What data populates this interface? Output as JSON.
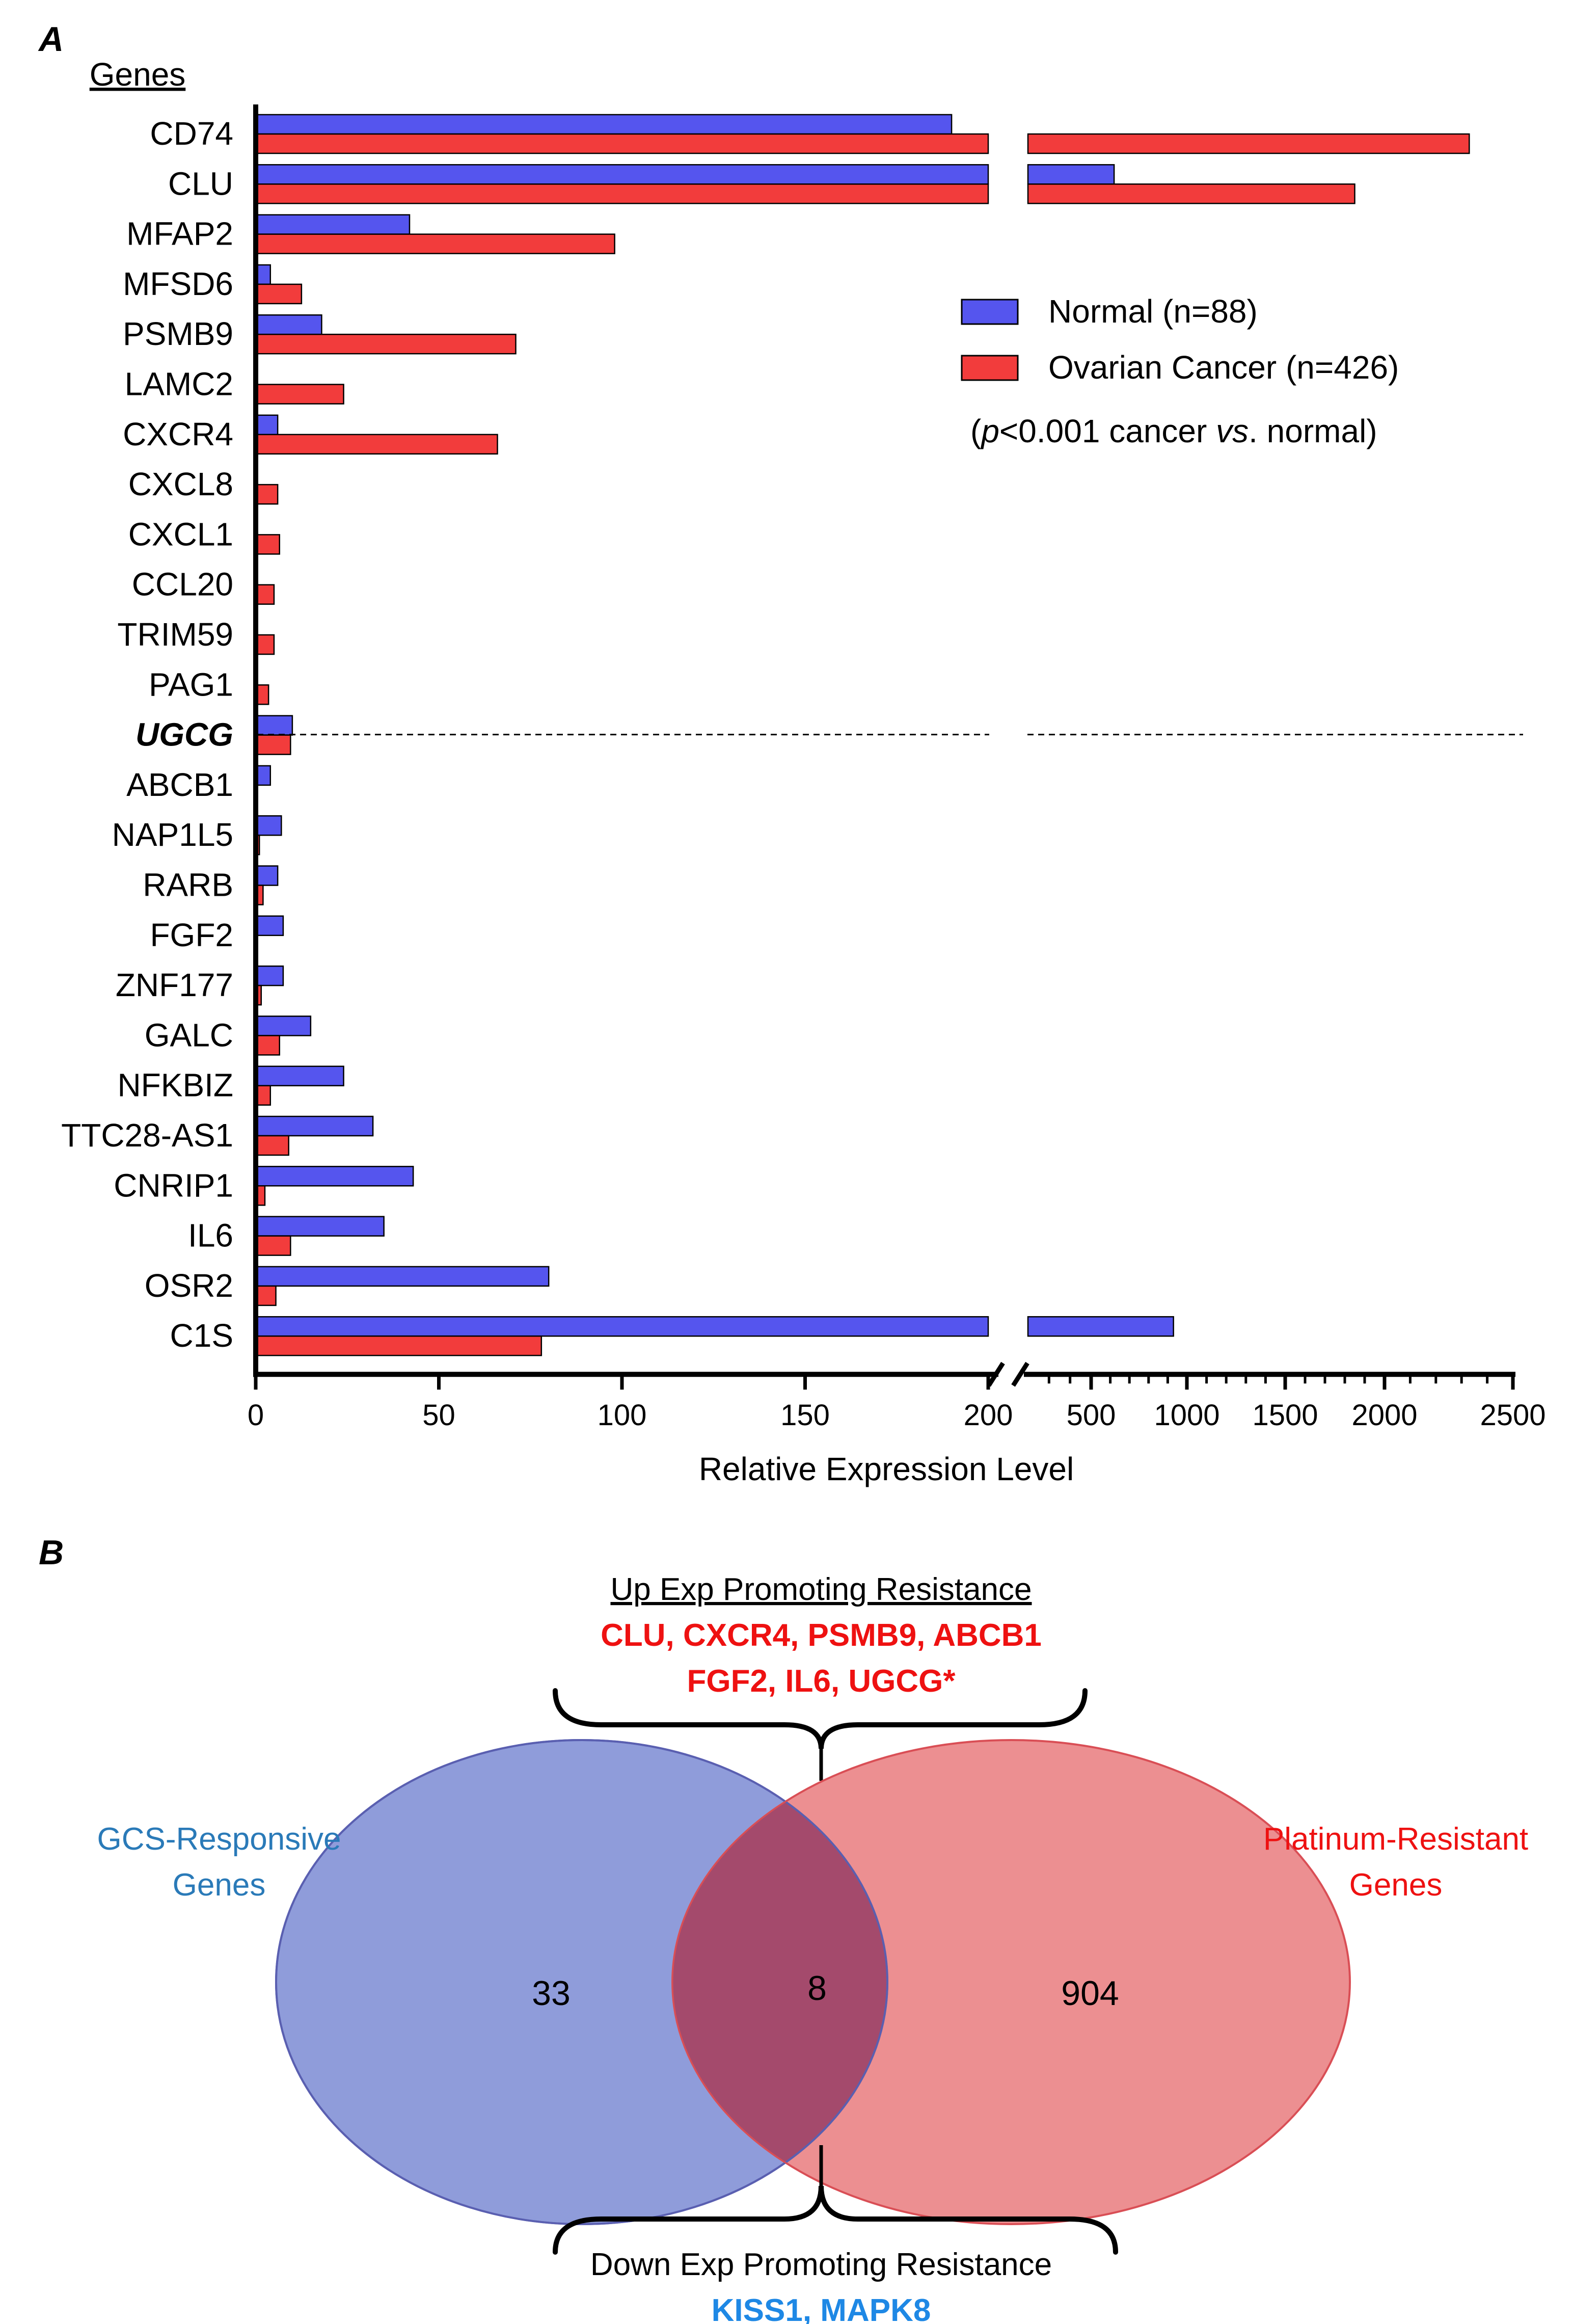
{
  "panel_a": {
    "letter": "A",
    "genes_header": "Genes",
    "highlight_gene": "UGCG",
    "legend": {
      "normal": "Normal (n=88)",
      "cancer": "Ovarian Cancer (n=426)",
      "pvalue_p": "p",
      "pvalue_mid": "<0.001 cancer ",
      "pvalue_vs": "vs",
      "pvalue_end": ". normal)",
      "pvalue_open": "("
    }
  },
  "panel_b": {
    "letter": "B",
    "up_title": "Up Exp Promoting Resistance",
    "up_genes_line1": "CLU, CXCR4, PSMB9, ABCB1",
    "up_genes_line2": "FGF2, IL6, UGCG*",
    "left_label_line1": "GCS-Responsive",
    "left_label_line2": "Genes",
    "right_label_line1": "Platinum-Resistant",
    "right_label_line2": "Genes",
    "left_only_count": "33",
    "overlap_count": "8",
    "right_only_count": "904",
    "down_title": "Down Exp Promoting Resistance",
    "down_genes": "KISS1, MAPK8"
  },
  "chart_data": {
    "type": "bar",
    "orientation": "horizontal",
    "title": "",
    "xlabel": "Relative Expression Level",
    "ylabel": "Genes",
    "x_axis_segments": [
      {
        "range": [
          0,
          200
        ],
        "ticks": [
          "0",
          "50",
          "100",
          "150",
          "200"
        ]
      },
      {
        "range": [
          200,
          2500
        ],
        "ticks": [
          "500",
          "1000",
          "1500",
          "2000",
          "2500"
        ]
      }
    ],
    "categories": [
      "CD74",
      "CLU",
      "MFAP2",
      "MFSD6",
      "PSMB9",
      "LAMC2",
      "CXCR4",
      "CXCL8",
      "CXCL1",
      "CCL20",
      "TRIM59",
      "PAG1",
      "UGCG",
      "ABCB1",
      "NAP1L5",
      "RARB",
      "FGF2",
      "ZNF177",
      "GALC",
      "NFKBIZ",
      "TTC28-AS1",
      "CNRIP1",
      "IL6",
      "OSR2",
      "C1S"
    ],
    "series": [
      {
        "name": "Normal (n=88)",
        "color": "#5555ee",
        "values": [
          190,
          620,
          42,
          4,
          18,
          0,
          6,
          0,
          0,
          0,
          0.5,
          0.5,
          10,
          4,
          7,
          6,
          7.5,
          7.5,
          15,
          24,
          32,
          43,
          35,
          80,
          930
        ]
      },
      {
        "name": "Ovarian Cancer (n=426)",
        "color": "#f23c3c",
        "values": [
          2330,
          1850,
          98,
          12.5,
          71,
          24,
          66,
          6,
          6.5,
          5,
          5,
          3.5,
          9.5,
          0,
          1,
          2,
          0,
          1.5,
          6.5,
          4,
          9,
          2.5,
          9.5,
          5.5,
          78
        ]
      }
    ],
    "reference_line": {
      "category": "UGCG",
      "style": "dashed"
    },
    "legend_position": "right"
  }
}
